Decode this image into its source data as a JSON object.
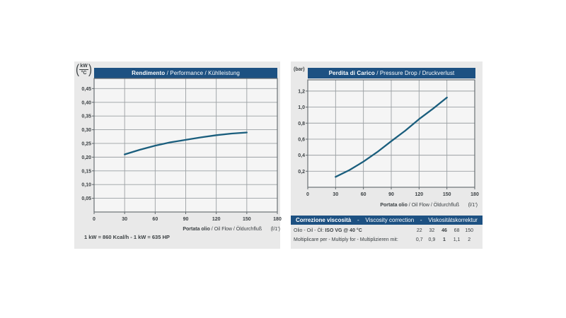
{
  "colors": {
    "page_bg": "#ffffff",
    "panel_bg": "#e9e9e9",
    "plot_bg": "#f5f5f5",
    "grid": "#9ba0a3",
    "frame": "#5f666a",
    "header_bg": "#1d5182",
    "header_text": "#ffffff",
    "curve": "#1a5e7d",
    "text": "#3b4043"
  },
  "chart_data": [
    {
      "type": "line",
      "title_bold": "Rendimento",
      "title_rest": " / Performance / Kühlleistung",
      "y_unit_top": "kW",
      "y_unit_bottom": "°C",
      "xlabel_bold": "Portata olio",
      "xlabel_rest": " / Oil Flow / Öldurchfluß",
      "xlabel_unit": "(l/1')",
      "xlim": [
        0,
        180
      ],
      "ylim": [
        0,
        0.487
      ],
      "x_ticks": [
        0,
        30,
        60,
        90,
        120,
        150,
        180
      ],
      "x_tick_labels": [
        "0",
        "30",
        "60",
        "90",
        "120",
        "150",
        "180"
      ],
      "y_ticks": [
        0.05,
        0.1,
        0.15,
        0.2,
        0.25,
        0.3,
        0.35,
        0.4,
        0.45
      ],
      "y_tick_labels": [
        "0,05",
        "0,10",
        "0,15",
        "0,20",
        "0,25",
        "0,30",
        "0,35",
        "0,40",
        "0,45"
      ],
      "grid": true,
      "legend": false,
      "series": [
        {
          "name": "cooling-performance",
          "x": [
            30,
            45,
            60,
            75,
            90,
            105,
            120,
            135,
            150
          ],
          "y": [
            0.21,
            0.227,
            0.242,
            0.254,
            0.263,
            0.272,
            0.28,
            0.286,
            0.29
          ]
        }
      ],
      "footnote": "1 kW = 860 Kcal/h - 1 kW = 635 HP"
    },
    {
      "type": "line",
      "title_bold": "Perdita di Carico",
      "title_rest": " / Pressure Drop / Druckverlust",
      "y_unit_text": "(bar)",
      "xlabel_bold": "Portata olio",
      "xlabel_rest": " / Oil Flow / Öldurchfluß",
      "xlabel_unit": "(l/1')",
      "xlim": [
        0,
        180
      ],
      "ylim": [
        0,
        1.34
      ],
      "x_ticks": [
        0,
        30,
        60,
        90,
        120,
        150,
        180
      ],
      "x_tick_labels": [
        "0",
        "30",
        "60",
        "90",
        "120",
        "150",
        "180"
      ],
      "y_ticks": [
        0.2,
        0.4,
        0.6,
        0.8,
        1.0,
        1.2
      ],
      "y_tick_labels": [
        "0,2",
        "0,4",
        "0,6",
        "0,8",
        "1,0",
        "1,2"
      ],
      "grid": true,
      "legend": false,
      "series": [
        {
          "name": "pressure-drop",
          "x": [
            30,
            45,
            60,
            75,
            90,
            105,
            120,
            135,
            150
          ],
          "y": [
            0.13,
            0.215,
            0.32,
            0.44,
            0.575,
            0.705,
            0.85,
            0.98,
            1.12
          ]
        }
      ]
    }
  ],
  "viscosity": {
    "header_bold": "Correzione viscosità",
    "header_sep": "-",
    "header_mid": "Viscosity correction",
    "header_end": "Viskositätskorrektur",
    "rows": [
      {
        "label_normal": "Olio - Oil - Öl: ",
        "label_bold": "ISO VG @ 40 °C",
        "bold_first": false,
        "values": [
          "22",
          "32",
          "46",
          "68",
          "150"
        ],
        "bold_value_index": 2
      },
      {
        "label_normal": "Moltiplicare per - Multiply for - Multiplizieren mit:",
        "label_bold": "",
        "bold_first": false,
        "values": [
          "0,7",
          "0,9",
          "1",
          "1,1",
          "2"
        ],
        "bold_value_index": 2
      }
    ]
  }
}
